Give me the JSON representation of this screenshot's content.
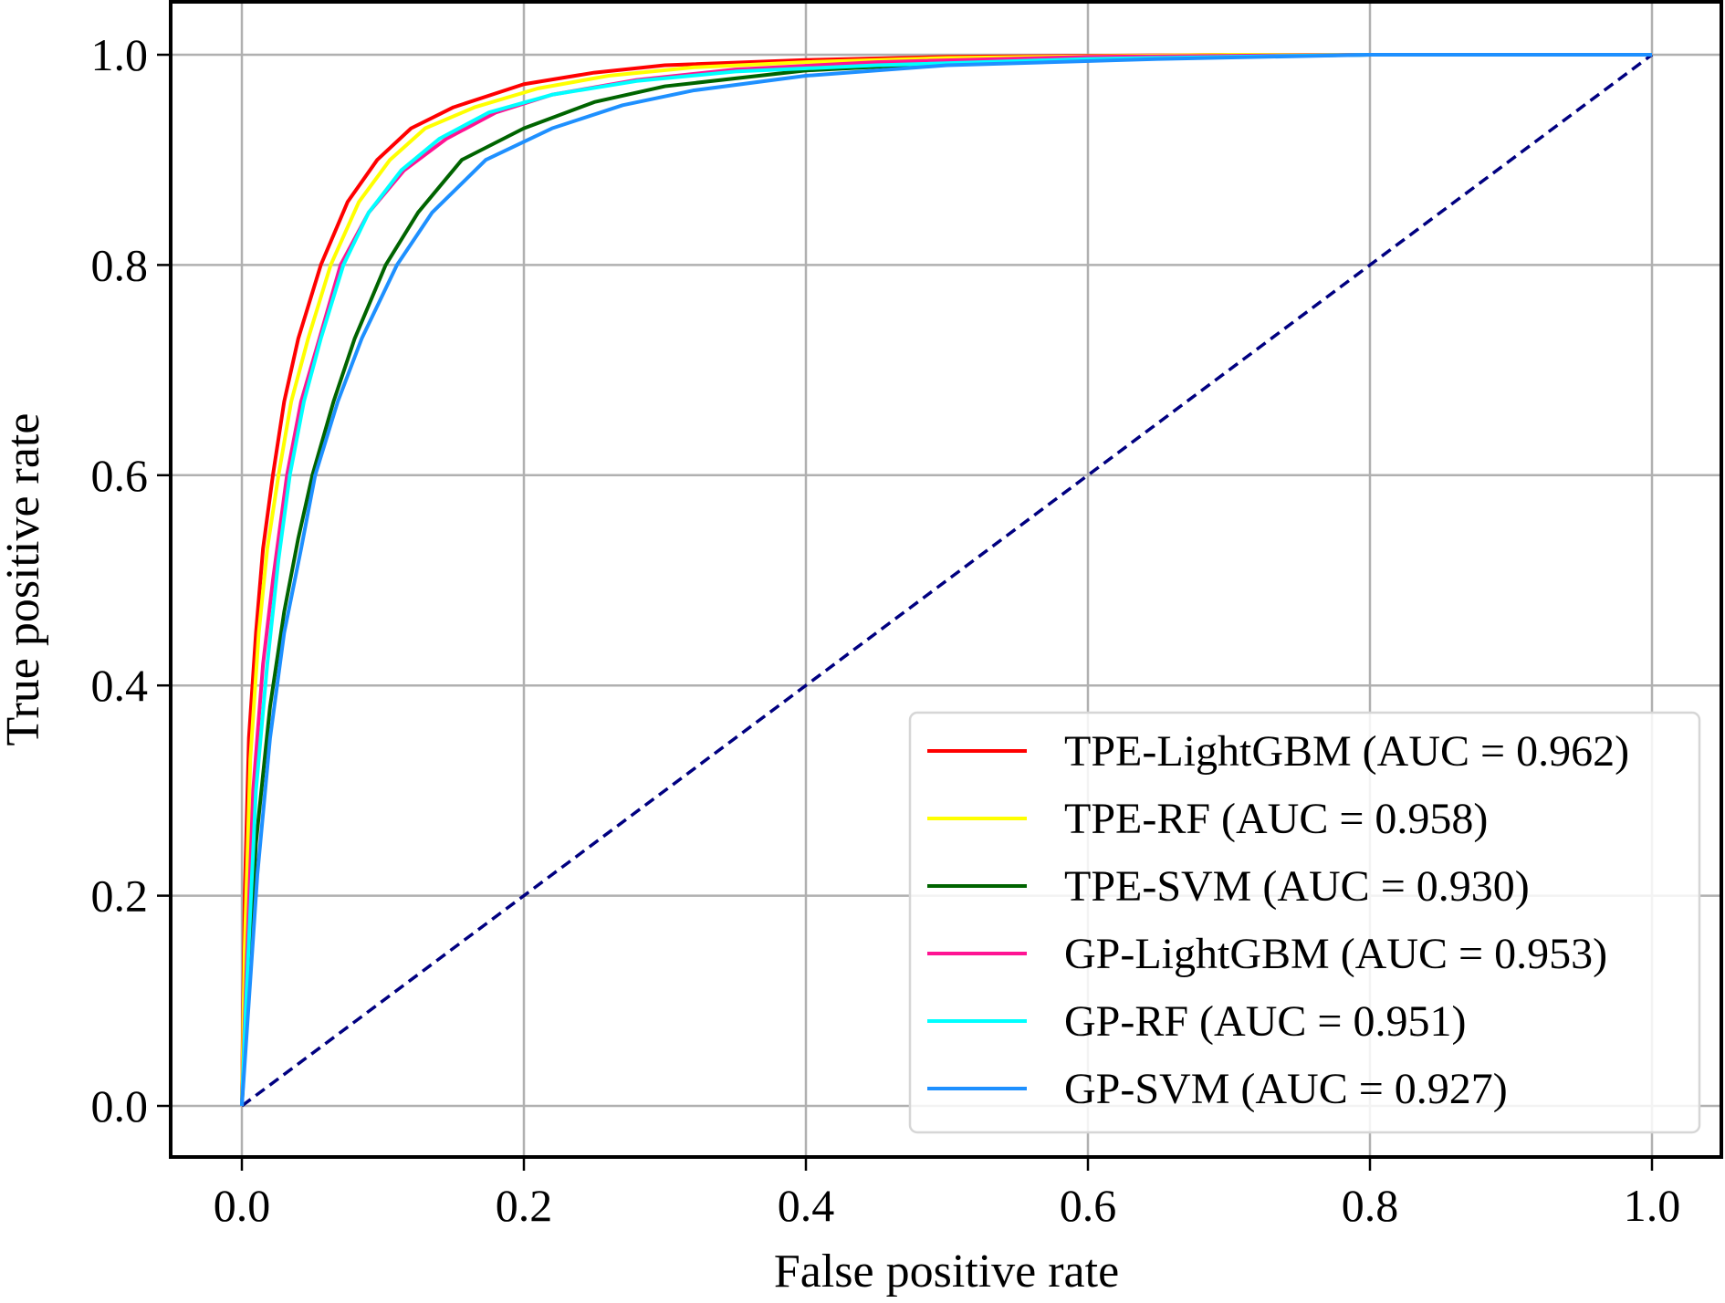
{
  "chart_data": {
    "type": "line",
    "title": "",
    "xlabel": "False positive rate",
    "ylabel": "True positive rate",
    "xlim": [
      -0.05,
      1.05
    ],
    "ylim": [
      -0.05,
      1.05
    ],
    "xticks": [
      "0.0",
      "0.2",
      "0.4",
      "0.6",
      "0.8",
      "1.0"
    ],
    "yticks": [
      "0.0",
      "0.2",
      "0.4",
      "0.6",
      "0.8",
      "1.0"
    ],
    "grid": true,
    "legend_position": "bottom-right",
    "diagonal": {
      "color": "#000080",
      "style": "dashed",
      "points": [
        [
          0,
          0
        ],
        [
          1,
          1
        ]
      ]
    },
    "series": [
      {
        "name": "TPE-LightGBM (AUC = 0.962)",
        "color": "#ff0000",
        "points": [
          [
            0,
            0
          ],
          [
            0.002,
            0.2
          ],
          [
            0.005,
            0.35
          ],
          [
            0.01,
            0.45
          ],
          [
            0.015,
            0.53
          ],
          [
            0.022,
            0.6
          ],
          [
            0.03,
            0.67
          ],
          [
            0.04,
            0.73
          ],
          [
            0.056,
            0.8
          ],
          [
            0.075,
            0.86
          ],
          [
            0.096,
            0.9
          ],
          [
            0.12,
            0.93
          ],
          [
            0.15,
            0.95
          ],
          [
            0.2,
            0.972
          ],
          [
            0.25,
            0.983
          ],
          [
            0.3,
            0.99
          ],
          [
            0.4,
            0.995
          ],
          [
            0.5,
            0.998
          ],
          [
            0.7,
            1
          ],
          [
            1,
            1
          ]
        ]
      },
      {
        "name": "TPE-RF (AUC = 0.958)",
        "color": "#ffff00",
        "points": [
          [
            0,
            0
          ],
          [
            0.002,
            0.15
          ],
          [
            0.006,
            0.33
          ],
          [
            0.012,
            0.45
          ],
          [
            0.018,
            0.53
          ],
          [
            0.026,
            0.6
          ],
          [
            0.035,
            0.67
          ],
          [
            0.047,
            0.73
          ],
          [
            0.063,
            0.8
          ],
          [
            0.083,
            0.86
          ],
          [
            0.105,
            0.9
          ],
          [
            0.13,
            0.93
          ],
          [
            0.165,
            0.95
          ],
          [
            0.21,
            0.968
          ],
          [
            0.26,
            0.98
          ],
          [
            0.32,
            0.988
          ],
          [
            0.4,
            0.993
          ],
          [
            0.5,
            0.997
          ],
          [
            0.7,
            1
          ],
          [
            1,
            1
          ]
        ]
      },
      {
        "name": "TPE-SVM (AUC = 0.930)",
        "color": "#006400",
        "points": [
          [
            0,
            0
          ],
          [
            0.004,
            0.1
          ],
          [
            0.01,
            0.25
          ],
          [
            0.02,
            0.38
          ],
          [
            0.03,
            0.47
          ],
          [
            0.04,
            0.54
          ],
          [
            0.05,
            0.6
          ],
          [
            0.065,
            0.67
          ],
          [
            0.08,
            0.73
          ],
          [
            0.102,
            0.8
          ],
          [
            0.125,
            0.85
          ],
          [
            0.156,
            0.9
          ],
          [
            0.2,
            0.93
          ],
          [
            0.25,
            0.955
          ],
          [
            0.3,
            0.97
          ],
          [
            0.4,
            0.985
          ],
          [
            0.5,
            0.992
          ],
          [
            0.65,
            0.997
          ],
          [
            0.8,
            1
          ],
          [
            1,
            1
          ]
        ]
      },
      {
        "name": "GP-LightGBM (AUC = 0.953)",
        "color": "#ff1493",
        "points": [
          [
            0,
            0
          ],
          [
            0.003,
            0.12
          ],
          [
            0.008,
            0.3
          ],
          [
            0.015,
            0.42
          ],
          [
            0.022,
            0.5
          ],
          [
            0.032,
            0.6
          ],
          [
            0.042,
            0.67
          ],
          [
            0.055,
            0.73
          ],
          [
            0.07,
            0.8
          ],
          [
            0.09,
            0.85
          ],
          [
            0.115,
            0.89
          ],
          [
            0.145,
            0.92
          ],
          [
            0.18,
            0.945
          ],
          [
            0.22,
            0.962
          ],
          [
            0.28,
            0.976
          ],
          [
            0.35,
            0.986
          ],
          [
            0.45,
            0.993
          ],
          [
            0.6,
            0.998
          ],
          [
            0.8,
            1
          ],
          [
            1,
            1
          ]
        ]
      },
      {
        "name": "GP-RF (AUC = 0.951)",
        "color": "#00ffff",
        "points": [
          [
            0,
            0
          ],
          [
            0.003,
            0.1
          ],
          [
            0.01,
            0.3
          ],
          [
            0.018,
            0.42
          ],
          [
            0.026,
            0.52
          ],
          [
            0.034,
            0.6
          ],
          [
            0.044,
            0.67
          ],
          [
            0.056,
            0.73
          ],
          [
            0.072,
            0.8
          ],
          [
            0.09,
            0.85
          ],
          [
            0.113,
            0.89
          ],
          [
            0.14,
            0.92
          ],
          [
            0.175,
            0.945
          ],
          [
            0.22,
            0.962
          ],
          [
            0.28,
            0.975
          ],
          [
            0.35,
            0.984
          ],
          [
            0.45,
            0.99
          ],
          [
            0.6,
            0.996
          ],
          [
            0.8,
            1
          ],
          [
            1,
            1
          ]
        ]
      },
      {
        "name": "GP-SVM (AUC = 0.927)",
        "color": "#1e90ff",
        "points": [
          [
            0,
            0
          ],
          [
            0.004,
            0.08
          ],
          [
            0.011,
            0.22
          ],
          [
            0.02,
            0.35
          ],
          [
            0.03,
            0.45
          ],
          [
            0.042,
            0.53
          ],
          [
            0.052,
            0.6
          ],
          [
            0.068,
            0.67
          ],
          [
            0.085,
            0.73
          ],
          [
            0.11,
            0.8
          ],
          [
            0.135,
            0.85
          ],
          [
            0.173,
            0.9
          ],
          [
            0.22,
            0.93
          ],
          [
            0.27,
            0.952
          ],
          [
            0.32,
            0.966
          ],
          [
            0.4,
            0.98
          ],
          [
            0.5,
            0.99
          ],
          [
            0.65,
            0.996
          ],
          [
            0.8,
            1
          ],
          [
            1,
            1
          ]
        ]
      }
    ]
  }
}
